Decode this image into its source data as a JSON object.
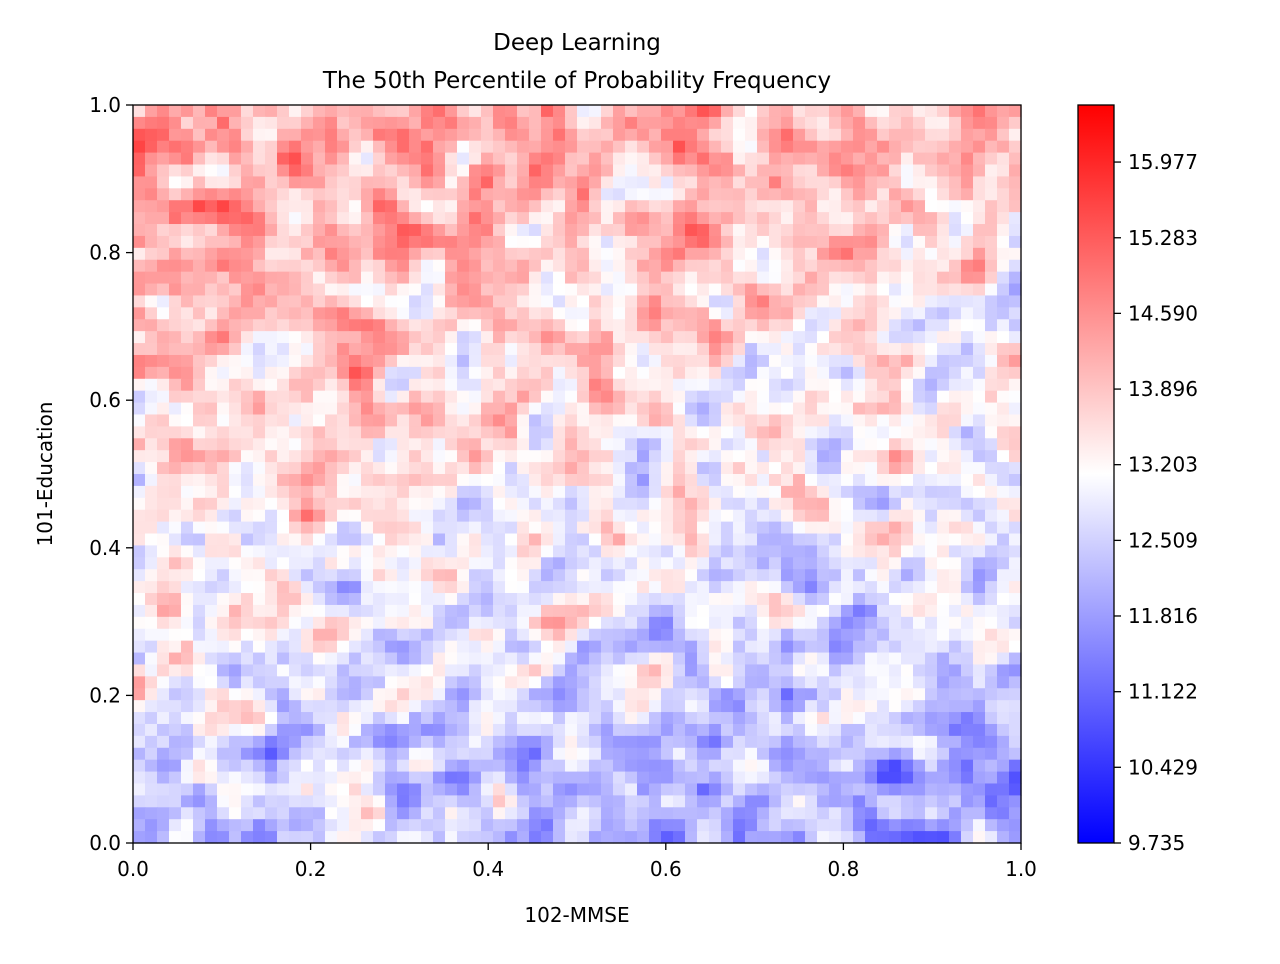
{
  "chart_data": {
    "type": "heatmap",
    "title": "Deep Learning",
    "subtitle": "The 50th Percentile of Probability Frequency",
    "xlabel": "102-MMSE",
    "ylabel": "101-Education",
    "xlim": [
      0.0,
      1.0
    ],
    "ylim": [
      0.0,
      1.0
    ],
    "x_ticks": [
      "0.0",
      "0.2",
      "0.4",
      "0.6",
      "0.8",
      "1.0"
    ],
    "y_ticks": [
      "0.0",
      "0.2",
      "0.4",
      "0.6",
      "0.8",
      "1.0"
    ],
    "colormap": "bwr",
    "colorbar": {
      "min": 9.735,
      "max": 16.5,
      "ticks": [
        "9.735",
        "10.429",
        "11.122",
        "11.816",
        "12.509",
        "13.203",
        "13.896",
        "14.590",
        "15.283",
        "15.977"
      ],
      "colors": {
        "low": "#0000ff",
        "mid": "#ffffff",
        "high": "#ff0000"
      }
    },
    "trend": "values increase from bottom-right (blue, ~10.4) to top-left (red, ~15.9) with speckled noise"
  }
}
